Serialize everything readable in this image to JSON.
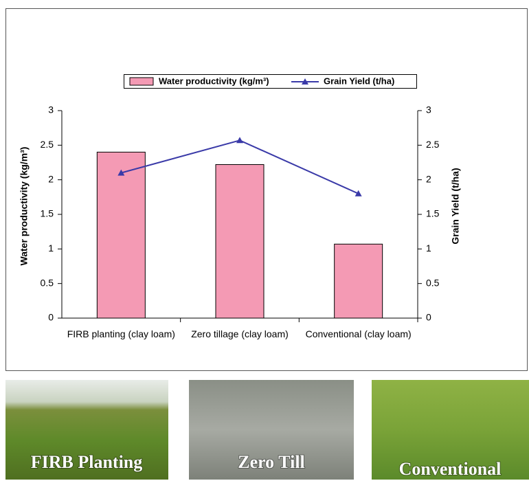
{
  "chart_data": {
    "type": "bar",
    "categories": [
      "FIRB planting (clay loam)",
      "Zero tillage (clay loam)",
      "Conventional (clay loam)"
    ],
    "series": [
      {
        "name": "Water productivity (kg/m³)",
        "type": "bar",
        "color": "#f49ab4",
        "values": [
          2.4,
          2.22,
          1.07
        ]
      },
      {
        "name": "Grain Yield (t/ha)",
        "type": "line",
        "axis": "y2",
        "color": "#3a3aa8",
        "values": [
          2.1,
          2.57,
          1.8
        ]
      }
    ],
    "ylabel": "Water productivity (kg/m³)",
    "y2label": "Grain Yield (t/ha)",
    "ylim": [
      0,
      3
    ],
    "yticks": [
      0,
      0.5,
      1,
      1.5,
      2,
      2.5,
      3
    ],
    "y2lim": [
      0,
      3
    ],
    "y2ticks": [
      0,
      0.5,
      1,
      1.5,
      2,
      2.5,
      3
    ]
  },
  "photos": [
    {
      "caption": "FIRB Planting"
    },
    {
      "caption": "Zero Till"
    },
    {
      "caption": "Conventional"
    }
  ]
}
